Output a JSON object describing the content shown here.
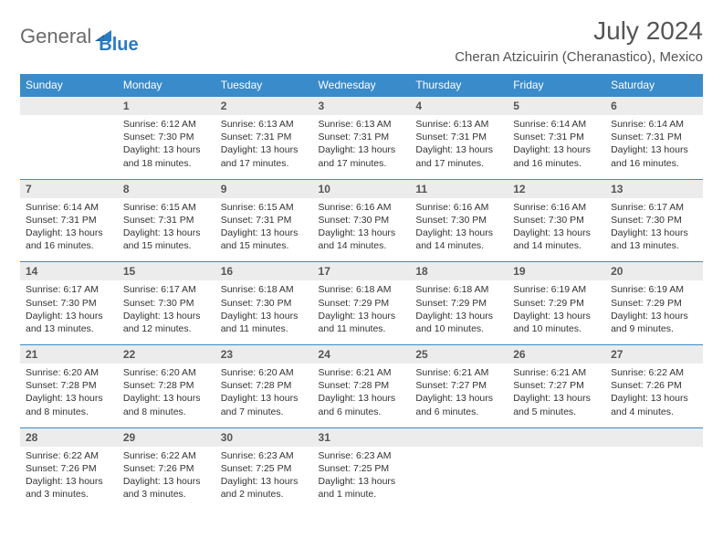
{
  "brand": {
    "part1": "General",
    "part2": "Blue"
  },
  "title": "July 2024",
  "location": "Cheran Atzicuirin (Cheranastico), Mexico",
  "colors": {
    "header_bg": "#3a8bc9",
    "numrow_bg": "#ececec",
    "rule": "#3a8bc9"
  },
  "weekdays": [
    "Sunday",
    "Monday",
    "Tuesday",
    "Wednesday",
    "Thursday",
    "Friday",
    "Saturday"
  ],
  "weeks": [
    {
      "nums": [
        "",
        "1",
        "2",
        "3",
        "4",
        "5",
        "6"
      ],
      "cells": [
        null,
        {
          "sunrise": "Sunrise: 6:12 AM",
          "sunset": "Sunset: 7:30 PM",
          "day1": "Daylight: 13 hours",
          "day2": "and 18 minutes."
        },
        {
          "sunrise": "Sunrise: 6:13 AM",
          "sunset": "Sunset: 7:31 PM",
          "day1": "Daylight: 13 hours",
          "day2": "and 17 minutes."
        },
        {
          "sunrise": "Sunrise: 6:13 AM",
          "sunset": "Sunset: 7:31 PM",
          "day1": "Daylight: 13 hours",
          "day2": "and 17 minutes."
        },
        {
          "sunrise": "Sunrise: 6:13 AM",
          "sunset": "Sunset: 7:31 PM",
          "day1": "Daylight: 13 hours",
          "day2": "and 17 minutes."
        },
        {
          "sunrise": "Sunrise: 6:14 AM",
          "sunset": "Sunset: 7:31 PM",
          "day1": "Daylight: 13 hours",
          "day2": "and 16 minutes."
        },
        {
          "sunrise": "Sunrise: 6:14 AM",
          "sunset": "Sunset: 7:31 PM",
          "day1": "Daylight: 13 hours",
          "day2": "and 16 minutes."
        }
      ]
    },
    {
      "nums": [
        "7",
        "8",
        "9",
        "10",
        "11",
        "12",
        "13"
      ],
      "cells": [
        {
          "sunrise": "Sunrise: 6:14 AM",
          "sunset": "Sunset: 7:31 PM",
          "day1": "Daylight: 13 hours",
          "day2": "and 16 minutes."
        },
        {
          "sunrise": "Sunrise: 6:15 AM",
          "sunset": "Sunset: 7:31 PM",
          "day1": "Daylight: 13 hours",
          "day2": "and 15 minutes."
        },
        {
          "sunrise": "Sunrise: 6:15 AM",
          "sunset": "Sunset: 7:31 PM",
          "day1": "Daylight: 13 hours",
          "day2": "and 15 minutes."
        },
        {
          "sunrise": "Sunrise: 6:16 AM",
          "sunset": "Sunset: 7:30 PM",
          "day1": "Daylight: 13 hours",
          "day2": "and 14 minutes."
        },
        {
          "sunrise": "Sunrise: 6:16 AM",
          "sunset": "Sunset: 7:30 PM",
          "day1": "Daylight: 13 hours",
          "day2": "and 14 minutes."
        },
        {
          "sunrise": "Sunrise: 6:16 AM",
          "sunset": "Sunset: 7:30 PM",
          "day1": "Daylight: 13 hours",
          "day2": "and 14 minutes."
        },
        {
          "sunrise": "Sunrise: 6:17 AM",
          "sunset": "Sunset: 7:30 PM",
          "day1": "Daylight: 13 hours",
          "day2": "and 13 minutes."
        }
      ]
    },
    {
      "nums": [
        "14",
        "15",
        "16",
        "17",
        "18",
        "19",
        "20"
      ],
      "cells": [
        {
          "sunrise": "Sunrise: 6:17 AM",
          "sunset": "Sunset: 7:30 PM",
          "day1": "Daylight: 13 hours",
          "day2": "and 13 minutes."
        },
        {
          "sunrise": "Sunrise: 6:17 AM",
          "sunset": "Sunset: 7:30 PM",
          "day1": "Daylight: 13 hours",
          "day2": "and 12 minutes."
        },
        {
          "sunrise": "Sunrise: 6:18 AM",
          "sunset": "Sunset: 7:30 PM",
          "day1": "Daylight: 13 hours",
          "day2": "and 11 minutes."
        },
        {
          "sunrise": "Sunrise: 6:18 AM",
          "sunset": "Sunset: 7:29 PM",
          "day1": "Daylight: 13 hours",
          "day2": "and 11 minutes."
        },
        {
          "sunrise": "Sunrise: 6:18 AM",
          "sunset": "Sunset: 7:29 PM",
          "day1": "Daylight: 13 hours",
          "day2": "and 10 minutes."
        },
        {
          "sunrise": "Sunrise: 6:19 AM",
          "sunset": "Sunset: 7:29 PM",
          "day1": "Daylight: 13 hours",
          "day2": "and 10 minutes."
        },
        {
          "sunrise": "Sunrise: 6:19 AM",
          "sunset": "Sunset: 7:29 PM",
          "day1": "Daylight: 13 hours",
          "day2": "and 9 minutes."
        }
      ]
    },
    {
      "nums": [
        "21",
        "22",
        "23",
        "24",
        "25",
        "26",
        "27"
      ],
      "cells": [
        {
          "sunrise": "Sunrise: 6:20 AM",
          "sunset": "Sunset: 7:28 PM",
          "day1": "Daylight: 13 hours",
          "day2": "and 8 minutes."
        },
        {
          "sunrise": "Sunrise: 6:20 AM",
          "sunset": "Sunset: 7:28 PM",
          "day1": "Daylight: 13 hours",
          "day2": "and 8 minutes."
        },
        {
          "sunrise": "Sunrise: 6:20 AM",
          "sunset": "Sunset: 7:28 PM",
          "day1": "Daylight: 13 hours",
          "day2": "and 7 minutes."
        },
        {
          "sunrise": "Sunrise: 6:21 AM",
          "sunset": "Sunset: 7:28 PM",
          "day1": "Daylight: 13 hours",
          "day2": "and 6 minutes."
        },
        {
          "sunrise": "Sunrise: 6:21 AM",
          "sunset": "Sunset: 7:27 PM",
          "day1": "Daylight: 13 hours",
          "day2": "and 6 minutes."
        },
        {
          "sunrise": "Sunrise: 6:21 AM",
          "sunset": "Sunset: 7:27 PM",
          "day1": "Daylight: 13 hours",
          "day2": "and 5 minutes."
        },
        {
          "sunrise": "Sunrise: 6:22 AM",
          "sunset": "Sunset: 7:26 PM",
          "day1": "Daylight: 13 hours",
          "day2": "and 4 minutes."
        }
      ]
    },
    {
      "nums": [
        "28",
        "29",
        "30",
        "31",
        "",
        "",
        ""
      ],
      "cells": [
        {
          "sunrise": "Sunrise: 6:22 AM",
          "sunset": "Sunset: 7:26 PM",
          "day1": "Daylight: 13 hours",
          "day2": "and 3 minutes."
        },
        {
          "sunrise": "Sunrise: 6:22 AM",
          "sunset": "Sunset: 7:26 PM",
          "day1": "Daylight: 13 hours",
          "day2": "and 3 minutes."
        },
        {
          "sunrise": "Sunrise: 6:23 AM",
          "sunset": "Sunset: 7:25 PM",
          "day1": "Daylight: 13 hours",
          "day2": "and 2 minutes."
        },
        {
          "sunrise": "Sunrise: 6:23 AM",
          "sunset": "Sunset: 7:25 PM",
          "day1": "Daylight: 13 hours",
          "day2": "and 1 minute."
        },
        null,
        null,
        null
      ]
    }
  ]
}
